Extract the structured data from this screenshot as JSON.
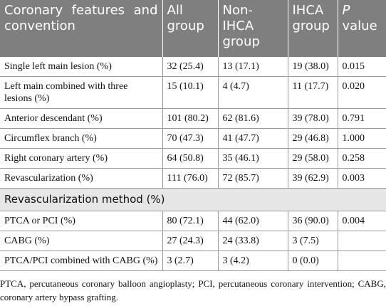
{
  "header": {
    "columns": [
      "Coronary features and convention",
      "All group",
      "Non-IHCA group",
      "IHCA group"
    ],
    "p_label": "P",
    "p_text": "value"
  },
  "table": {
    "rows": [
      [
        "Single left main lesion (%)",
        "32 (25.4)",
        "13 (17.1)",
        "19 (38.0)",
        "0.015"
      ],
      [
        "Left main combined with three lesions (%)",
        "15 (10.1)",
        "4 (4.7)",
        "11 (17.7)",
        "0.020"
      ],
      [
        "Anterior descendant (%)",
        "101 (80.2)",
        "62 (81.6)",
        "39 (78.0)",
        "0.791"
      ],
      [
        "Circumflex branch (%)",
        "70 (47.3)",
        "41 (47.7)",
        "29 (46.8)",
        "1.000"
      ],
      [
        "Right coronary artery (%)",
        "64 (50.8)",
        "35 (46.1)",
        "29 (58.0)",
        "0.258"
      ],
      [
        "Revascularization (%)",
        "111 (76.0)",
        "72 (85.7)",
        "39 (62.9)",
        "0.003"
      ]
    ],
    "section": "Revascularization method (%)",
    "section_rows": [
      [
        "PTCA or PCI (%)",
        "80 (72.1)",
        "44 (62.0)",
        "36 (90.0)",
        "0.004"
      ],
      [
        "CABG (%)",
        "27 (24.3)",
        "24 (33.8)",
        "3 (7.5)"
      ],
      [
        "PTCA/PCI combined with CABG (%)",
        "3 (2.7)",
        "3 (4.2)",
        "0 (0.0)"
      ]
    ]
  },
  "footnote": "PTCA, percutaneous coronary balloon angioplasty; PCI, percutaneous coronary intervention; CABG, coronary artery bypass grafting."
}
